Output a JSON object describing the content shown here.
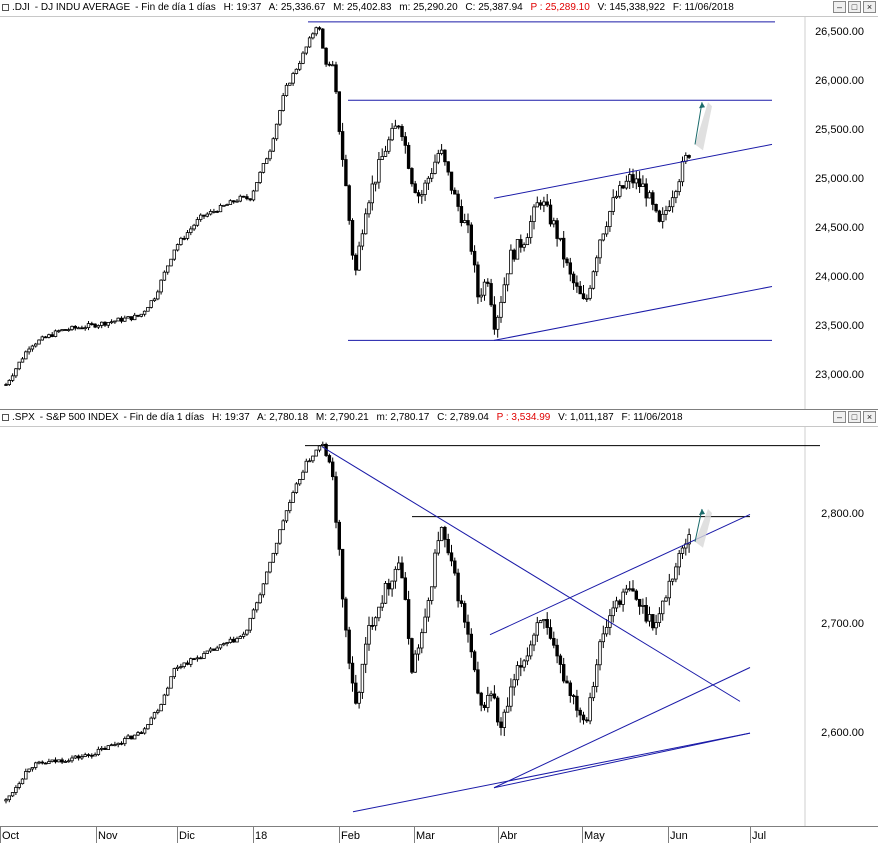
{
  "panes": [
    {
      "id": "dji",
      "title": {
        "symbol": ".DJI",
        "name": "DJ INDU AVERAGE",
        "period": "Fin de día 1 días",
        "h": "H: 19:37",
        "a": "A: 25,336.67",
        "m": "M: 25,402.83",
        "mm": "m: 25,290.20",
        "c": "C: 25,387.94",
        "p": "P : 25,289.10",
        "v": "V: 145,338,922",
        "f": "F: 11/06/2018"
      },
      "yticks": [
        "26,500.00",
        "26,000.00",
        "25,500.00",
        "25,000.00",
        "24,500.00",
        "24,000.00",
        "23,500.00",
        "23,000.00"
      ],
      "ytick_values": [
        26500,
        26000,
        25500,
        25000,
        24500,
        24000,
        23500,
        23000
      ]
    },
    {
      "id": "spx",
      "title": {
        "symbol": ".SPX",
        "name": "S&P 500 INDEX",
        "period": "Fin de día 1 días",
        "h": "H: 19:37",
        "a": "A: 2,780.18",
        "m": "M: 2,790.21",
        "mm": "m: 2,780.17",
        "c": "C: 2,789.04",
        "p": "P : 3,534.99",
        "v": "V: 1,011,187",
        "f": "F: 11/06/2018"
      },
      "yticks": [
        "2,800.00",
        "2,700.00",
        "2,600.00"
      ],
      "ytick_values": [
        2800,
        2700,
        2600
      ]
    }
  ],
  "xaxis": [
    "Oct",
    "Nov",
    "Dic",
    "18",
    "Feb",
    "Mar",
    "Abr",
    "May",
    "Jun",
    "Jul"
  ],
  "window_buttons": [
    "–",
    "□",
    "×"
  ],
  "colors": {
    "trendline": "#1a1aa8",
    "candle": "#000000",
    "arrow": "#1b6b6b",
    "shade": "#d8d8d8"
  },
  "chart_data": [
    {
      "type": "candlestick",
      "title": ".DJI - DJ INDU AVERAGE",
      "ylim": [
        22650,
        26650
      ],
      "x": [
        "Oct",
        "Nov",
        "Dic",
        "18",
        "Feb",
        "Mar",
        "Abr",
        "May",
        "Jun",
        "Jul"
      ],
      "anchors": [
        [
          0,
          22800
        ],
        [
          30,
          23300
        ],
        [
          60,
          23450
        ],
        [
          90,
          23500
        ],
        [
          115,
          23550
        ],
        [
          140,
          23600
        ],
        [
          155,
          23800
        ],
        [
          175,
          24300
        ],
        [
          200,
          24600
        ],
        [
          240,
          24800
        ],
        [
          250,
          24800
        ],
        [
          270,
          25300
        ],
        [
          285,
          25900
        ],
        [
          300,
          26200
        ],
        [
          318,
          26600
        ],
        [
          325,
          26200
        ],
        [
          333,
          26100
        ],
        [
          345,
          25000
        ],
        [
          355,
          24000
        ],
        [
          365,
          24700
        ],
        [
          385,
          25300
        ],
        [
          400,
          25600
        ],
        [
          412,
          25000
        ],
        [
          420,
          24800
        ],
        [
          440,
          25300
        ],
        [
          455,
          24800
        ],
        [
          470,
          24400
        ],
        [
          478,
          23800
        ],
        [
          488,
          24000
        ],
        [
          495,
          23500
        ],
        [
          510,
          24200
        ],
        [
          525,
          24400
        ],
        [
          540,
          24800
        ],
        [
          555,
          24500
        ],
        [
          570,
          24000
        ],
        [
          585,
          23700
        ],
        [
          600,
          24400
        ],
        [
          615,
          24800
        ],
        [
          630,
          25000
        ],
        [
          645,
          24900
        ],
        [
          660,
          24500
        ],
        [
          670,
          24800
        ],
        [
          690,
          25300
        ]
      ],
      "trendlines_value": "horizontal 26600, 25800, 23350; channel 24800 to 25350 and 23350 to 23900"
    },
    {
      "type": "candlestick",
      "title": ".SPX - S&P 500 INDEX",
      "ylim": [
        2515,
        2880
      ],
      "x": [
        "Oct",
        "Nov",
        "Dic",
        "18",
        "Feb",
        "Mar",
        "Abr",
        "May",
        "Jun",
        "Jul"
      ],
      "anchors": [
        [
          0,
          2530
        ],
        [
          30,
          2570
        ],
        [
          60,
          2575
        ],
        [
          90,
          2580
        ],
        [
          115,
          2590
        ],
        [
          140,
          2600
        ],
        [
          160,
          2625
        ],
        [
          175,
          2660
        ],
        [
          200,
          2670
        ],
        [
          245,
          2690
        ],
        [
          265,
          2740
        ],
        [
          285,
          2800
        ],
        [
          305,
          2845
        ],
        [
          322,
          2865
        ],
        [
          332,
          2840
        ],
        [
          345,
          2700
        ],
        [
          355,
          2620
        ],
        [
          370,
          2700
        ],
        [
          385,
          2730
        ],
        [
          400,
          2760
        ],
        [
          412,
          2660
        ],
        [
          425,
          2700
        ],
        [
          440,
          2790
        ],
        [
          455,
          2740
        ],
        [
          470,
          2680
        ],
        [
          480,
          2620
        ],
        [
          492,
          2640
        ],
        [
          500,
          2600
        ],
        [
          515,
          2650
        ],
        [
          530,
          2680
        ],
        [
          540,
          2710
        ],
        [
          555,
          2670
        ],
        [
          570,
          2640
        ],
        [
          585,
          2610
        ],
        [
          600,
          2680
        ],
        [
          615,
          2720
        ],
        [
          630,
          2730
        ],
        [
          645,
          2710
        ],
        [
          657,
          2700
        ],
        [
          670,
          2740
        ],
        [
          690,
          2785
        ]
      ]
    }
  ]
}
